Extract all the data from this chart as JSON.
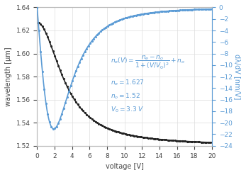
{
  "n_e": 1.627,
  "n_o": 1.52,
  "V0": 3.3,
  "lambda0_um": 1.627,
  "V_min": 0,
  "V_max": 20,
  "ylabel_left": "wavelength [μm]",
  "ylabel_right": "dλ/dV [nm/V]",
  "xlabel": "voltage [V]",
  "ylim_left": [
    1.52,
    1.64
  ],
  "ylim_right": [
    -24,
    0
  ],
  "yticks_left": [
    1.52,
    1.54,
    1.56,
    1.58,
    1.6,
    1.62,
    1.64
  ],
  "yticks_right": [
    0,
    -2,
    -4,
    -6,
    -8,
    -10,
    -12,
    -14,
    -16,
    -18,
    -20,
    -22,
    -24
  ],
  "xticks": [
    0,
    2,
    4,
    6,
    8,
    10,
    12,
    14,
    16,
    18,
    20
  ],
  "line_black_color": "#222222",
  "line_blue_color": "#5b9bd5",
  "annotation_color": "#5b9bd5",
  "grid_color": "#dddddd",
  "background_color": "#ffffff",
  "dot_size": 2.5,
  "linewidth": 1.2,
  "label_fontsize": 7,
  "tick_fontsize": 6.5,
  "annot_fontsize": 6.5
}
